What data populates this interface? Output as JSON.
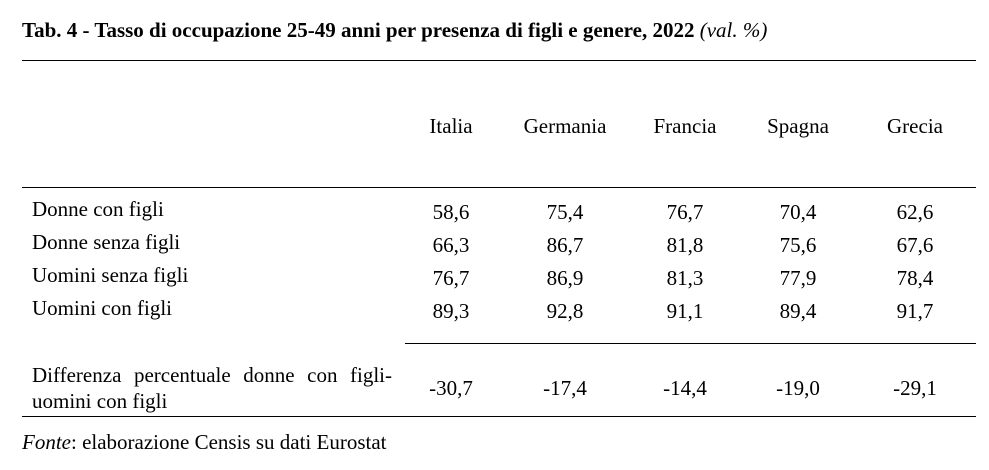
{
  "title": {
    "main": "Tab. 4 - Tasso di occupazione 25-49 anni per presenza di figli e genere, 2022",
    "unit": "(val. %)"
  },
  "table": {
    "columns": [
      "Italia",
      "Germania",
      "Francia",
      "Spagna",
      "Grecia"
    ],
    "rows": [
      {
        "label": "Donne con figli",
        "values": [
          "58,6",
          "75,4",
          "76,7",
          "70,4",
          "62,6"
        ]
      },
      {
        "label": "Donne senza figli",
        "values": [
          "66,3",
          "86,7",
          "81,8",
          "75,6",
          "67,6"
        ]
      },
      {
        "label": "Uomini senza figli",
        "values": [
          "76,7",
          "86,9",
          "81,3",
          "77,9",
          "78,4"
        ]
      },
      {
        "label": "Uomini con figli",
        "values": [
          "89,3",
          "92,8",
          "91,1",
          "89,4",
          "91,7"
        ]
      }
    ],
    "difference": {
      "label": "Differenza percentuale donne con figli-uomini con figli",
      "values": [
        "-30,7",
        "-17,4",
        "-14,4",
        "-19,0",
        "-29,1"
      ]
    }
  },
  "source": {
    "label": "Fonte",
    "text": ": elaborazione Censis su dati Eurostat"
  }
}
